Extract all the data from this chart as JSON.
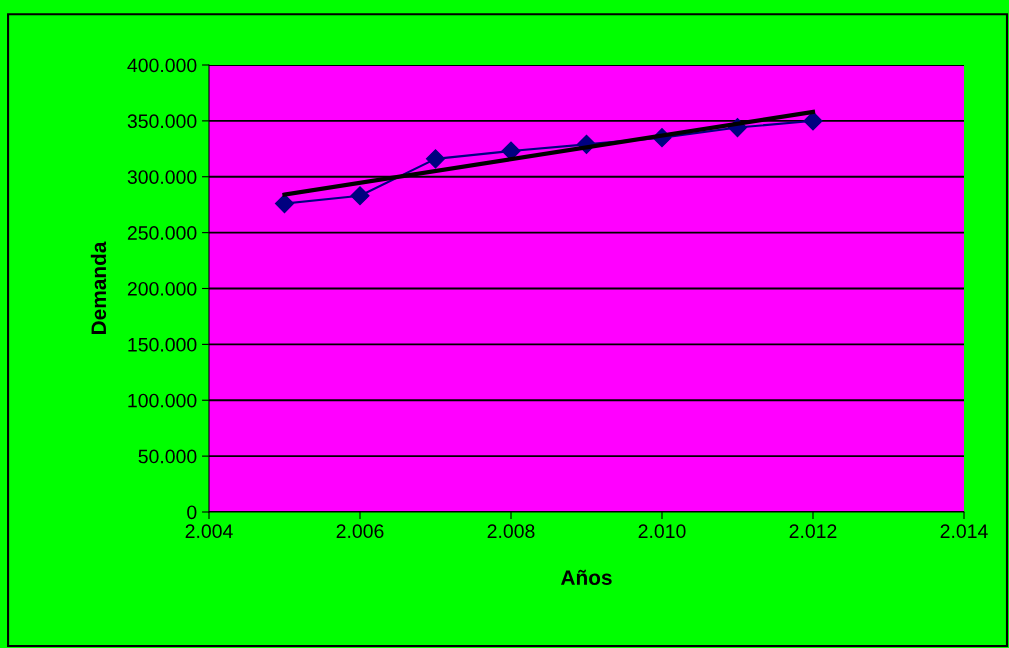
{
  "chart_data": {
    "type": "line",
    "xlabel": "Años",
    "ylabel": "Demanda",
    "x": [
      2005,
      2006,
      2007,
      2008,
      2009,
      2010,
      2011,
      2012
    ],
    "series": [
      {
        "color": "#000080",
        "marker": "diamond",
        "values": [
          276000,
          283000,
          316000,
          323000,
          329000,
          335000,
          344000,
          350000
        ]
      },
      {
        "color": "#000000",
        "marker": "none",
        "x": [
          2005,
          2012
        ],
        "values": [
          284000,
          358000
        ]
      }
    ],
    "xlim": [
      2004,
      2014
    ],
    "ylim": [
      0,
      400000
    ],
    "xticks": [
      {
        "value": 2004,
        "label": "2.004"
      },
      {
        "value": 2006,
        "label": "2.006"
      },
      {
        "value": 2008,
        "label": "2.008"
      },
      {
        "value": 2010,
        "label": "2.010"
      },
      {
        "value": 2012,
        "label": "2.012"
      },
      {
        "value": 2014,
        "label": "2.014"
      }
    ],
    "yticks": [
      0,
      {
        "value": 50000,
        "label": "50.000"
      },
      {
        "value": 100000,
        "label": "100.000"
      },
      {
        "value": 150000,
        "label": "150.000"
      },
      {
        "value": 200000,
        "label": "200.000"
      },
      {
        "value": 250000,
        "label": "250.000"
      },
      {
        "value": 300000,
        "label": "300.000"
      },
      {
        "value": 350000,
        "label": "350.000"
      },
      {
        "value": 400000,
        "label": "400.000"
      }
    ],
    "grid": "y",
    "legend": false
  }
}
